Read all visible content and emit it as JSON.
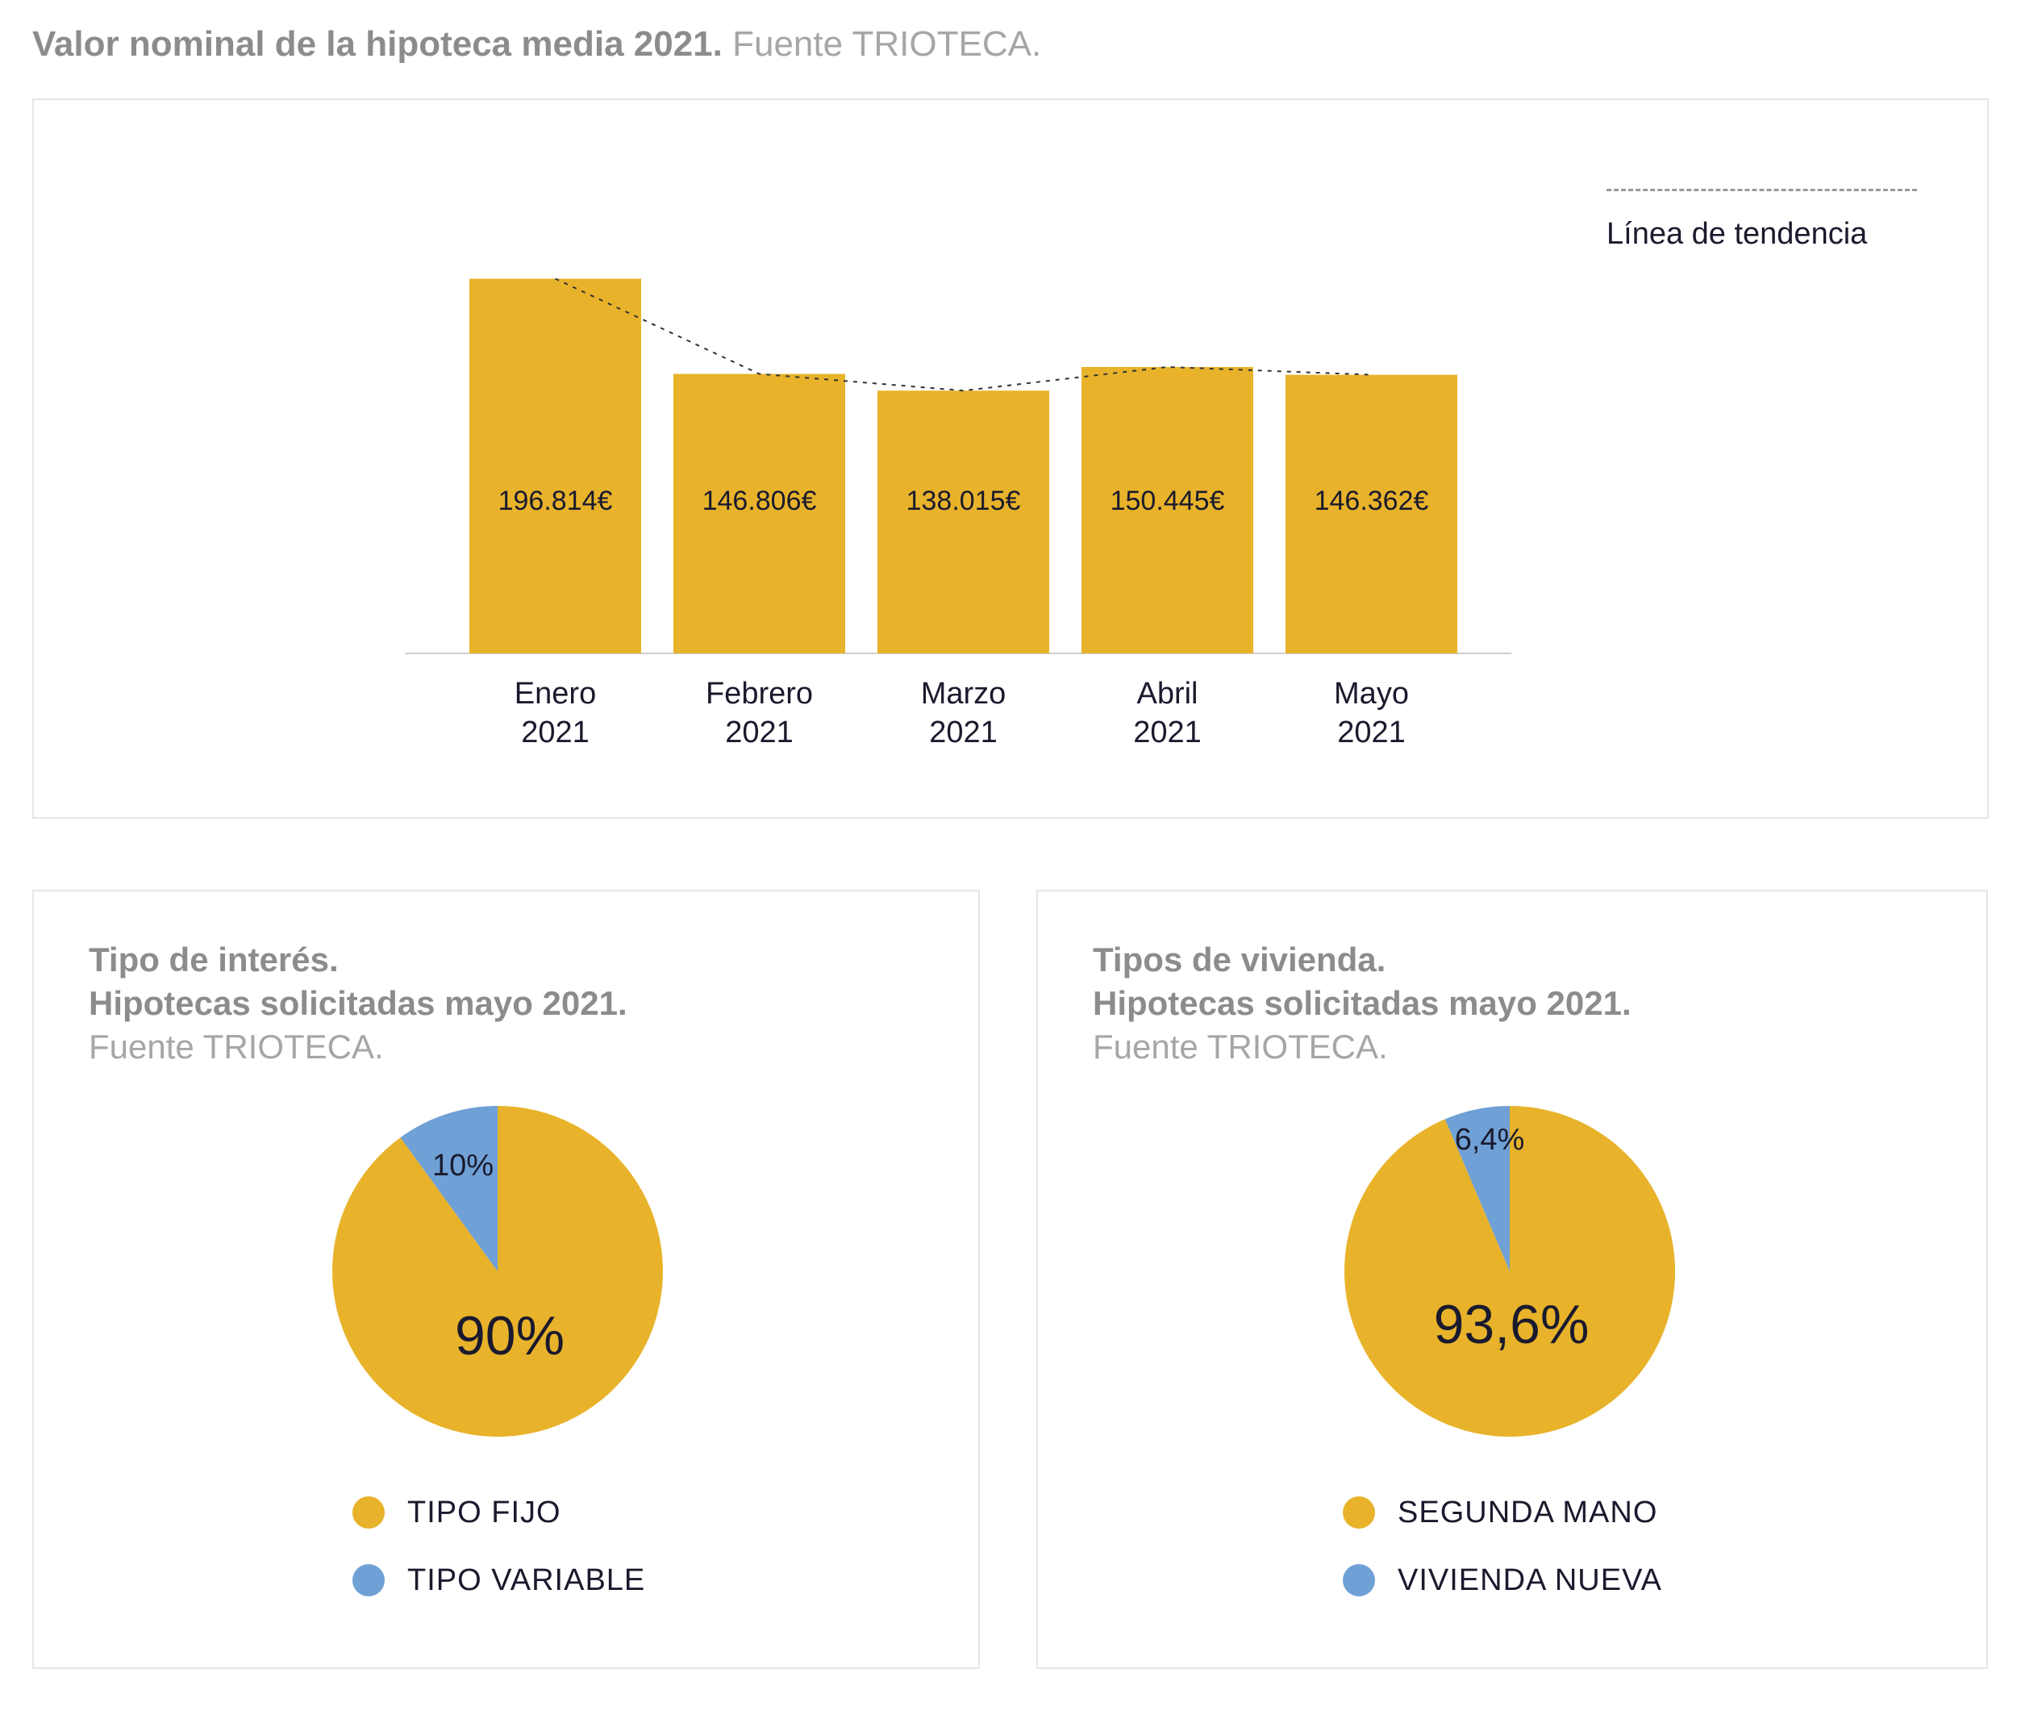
{
  "header": {
    "title_strong": "Valor nominal de la hipoteca media 2021.",
    "title_light": "Fuente TRIOTECA."
  },
  "colors": {
    "gold": "#E8B32A",
    "blue": "#6FA0D6",
    "text": "#1a1a2e",
    "axis": "#cfcfcf"
  },
  "chart_data": [
    {
      "type": "bar",
      "title": "Valor nominal de la hipoteca media 2021.",
      "subtitle": "Fuente TRIOTECA.",
      "categories": [
        [
          "Enero",
          "2021"
        ],
        [
          "Febrero",
          "2021"
        ],
        [
          "Marzo",
          "2021"
        ],
        [
          "Abril",
          "2021"
        ],
        [
          "Mayo",
          "2021"
        ]
      ],
      "values": [
        196814,
        146806,
        138015,
        150445,
        146362
      ],
      "value_labels": [
        "196.814€",
        "146.806€",
        "138.015€",
        "150.445€",
        "146.362€"
      ],
      "trendline": {
        "label": "Línea de tendencia",
        "style": "dotted"
      },
      "legend_position": "top-right",
      "grid": false,
      "ylim": [
        0,
        200000
      ]
    },
    {
      "type": "pie",
      "title": "Tipo de interés.",
      "subtitle": "Hipotecas solicitadas mayo 2021.",
      "source": "Fuente TRIOTECA.",
      "slices": [
        {
          "name": "TIPO FIJO",
          "value": 90,
          "label": "90%",
          "color": "#E8B32A"
        },
        {
          "name": "TIPO VARIABLE",
          "value": 10,
          "label": "10%",
          "color": "#6FA0D6"
        }
      ]
    },
    {
      "type": "pie",
      "title": "Tipos de vivienda.",
      "subtitle": "Hipotecas solicitadas mayo 2021.",
      "source": "Fuente TRIOTECA.",
      "slices": [
        {
          "name": "SEGUNDA MANO",
          "value": 93.6,
          "label": "93,6%",
          "color": "#E8B32A"
        },
        {
          "name": "VIVIENDA NUEVA",
          "value": 6.4,
          "label": "6,4%",
          "color": "#6FA0D6"
        }
      ]
    }
  ]
}
